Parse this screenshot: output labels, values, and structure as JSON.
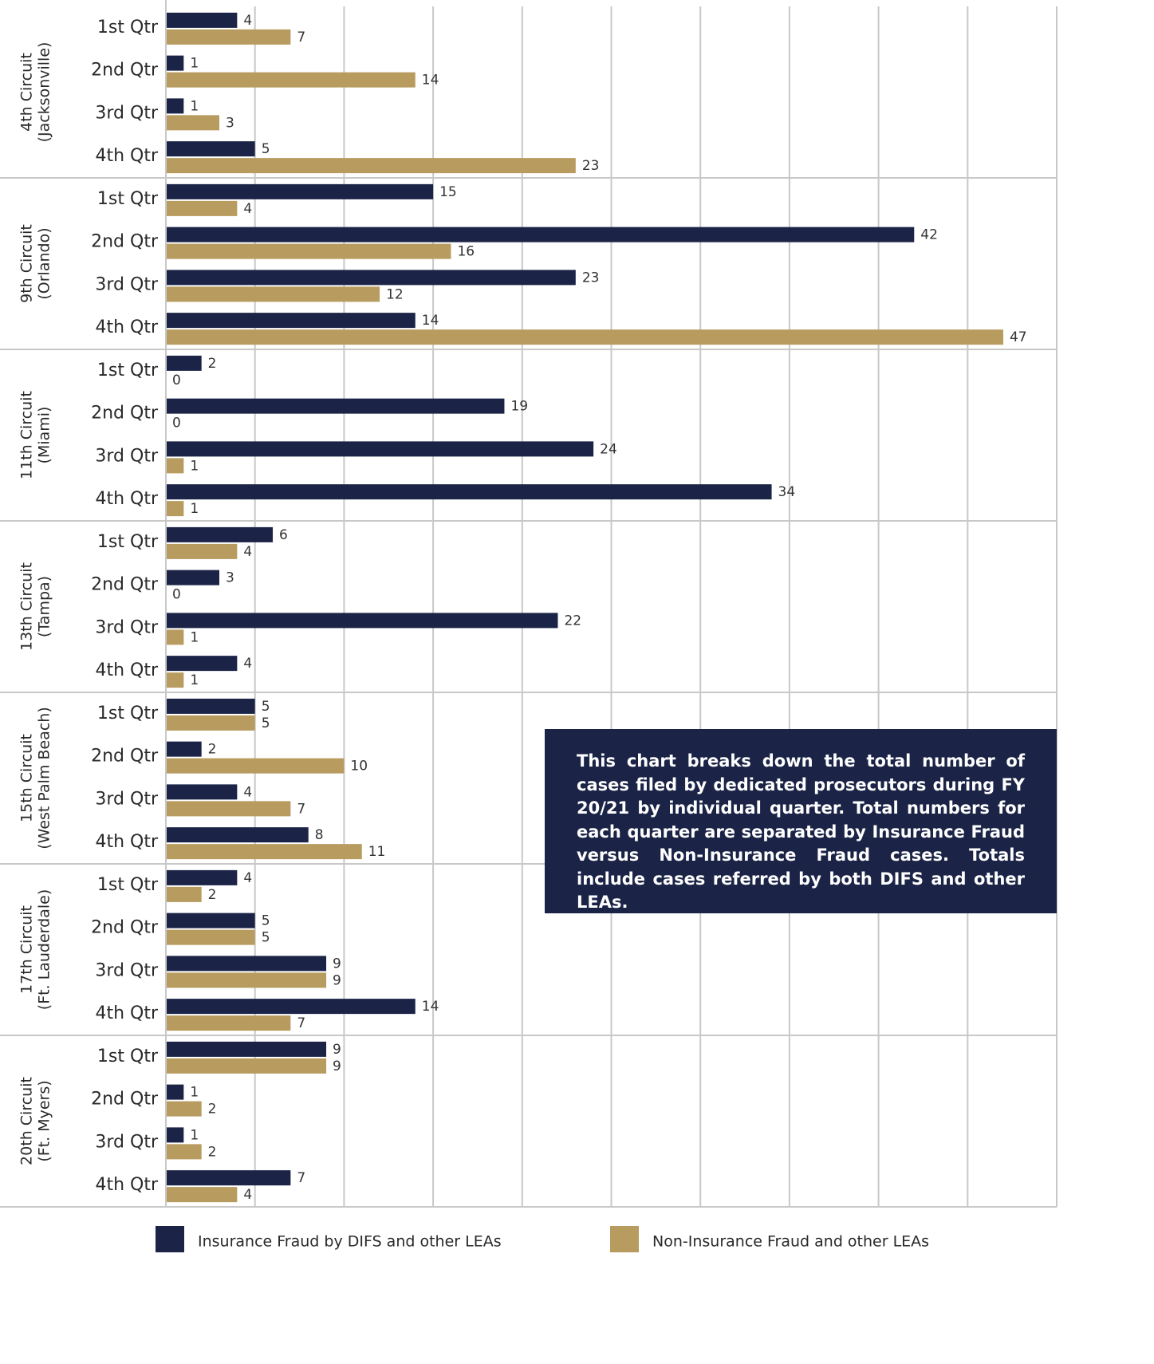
{
  "chart_data": {
    "type": "bar",
    "orientation": "horizontal",
    "groups": [
      [
        "4th Circuit",
        "(Jacksonville)"
      ],
      [
        "9th Circuit",
        "(Orlando)"
      ],
      [
        "11th Circuit",
        "(Miami)"
      ],
      [
        "13th Circuit",
        "(Tampa)"
      ],
      [
        "15th Circuit",
        "(West Palm Beach)"
      ],
      [
        "17th Circuit",
        "(Ft. Lauderdale)"
      ],
      [
        "20th Circuit",
        "(Ft. Myers)"
      ]
    ],
    "categories": [
      "1st Qtr",
      "2nd Qtr",
      "3rd Qtr",
      "4th Qtr",
      "1st Qtr",
      "2nd Qtr",
      "3rd Qtr",
      "4th Qtr",
      "1st Qtr",
      "2nd Qtr",
      "3rd Qtr",
      "4th Qtr",
      "1st Qtr",
      "2nd Qtr",
      "3rd Qtr",
      "4th Qtr",
      "1st Qtr",
      "2nd Qtr",
      "3rd Qtr",
      "4th Qtr",
      "1st Qtr",
      "2nd Qtr",
      "3rd Qtr",
      "4th Qtr",
      "1st Qtr",
      "2nd Qtr",
      "3rd Qtr",
      "4th Qtr"
    ],
    "series": [
      {
        "name": "Insurance Fraud by DIFS and other LEAs",
        "color": "#1b2447",
        "values": [
          4,
          1,
          1,
          5,
          15,
          42,
          23,
          14,
          2,
          19,
          24,
          34,
          6,
          3,
          22,
          4,
          5,
          2,
          4,
          8,
          4,
          5,
          9,
          14,
          9,
          1,
          1,
          7
        ]
      },
      {
        "name": "Non-Insurance Fraud and other LEAs",
        "color": "#b89b5e",
        "values": [
          7,
          14,
          3,
          23,
          4,
          16,
          12,
          47,
          0,
          0,
          1,
          1,
          4,
          0,
          1,
          1,
          5,
          10,
          7,
          11,
          2,
          5,
          9,
          7,
          9,
          2,
          2,
          4
        ]
      }
    ],
    "xlim": [
      0,
      50
    ],
    "xticks": [
      0,
      5,
      10,
      15,
      20,
      25,
      30,
      35,
      40,
      45,
      50
    ],
    "grid": true,
    "annotation": "This chart breaks down the total number of cases filed by dedicated prosecutors during FY 20/21 by individual quarter. Total numbers for each quarter are separated by Insurance Fraud versus Non-Insurance Fraud cases. Totals include cases referred by both DIFS and other LEAs."
  }
}
